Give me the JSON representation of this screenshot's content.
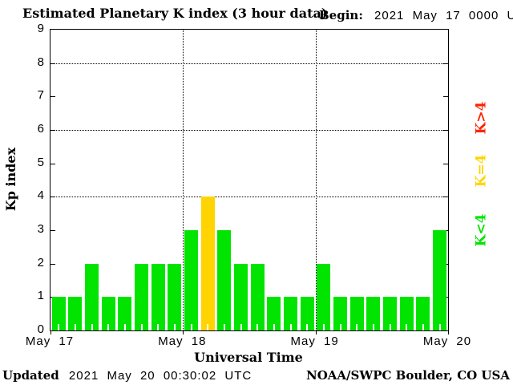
{
  "header": {
    "title": "Estimated Planetary K index (3 hour data)",
    "begin_label": "Begin:",
    "begin_value": "2021 May 17 0000 UTC"
  },
  "chart_data": {
    "type": "bar",
    "title": "Estimated Planetary K index (3 hour data)",
    "xlabel": "Universal Time",
    "ylabel": "Kp index",
    "ylim": [
      0,
      9
    ],
    "y_ticks": [
      0,
      1,
      2,
      3,
      4,
      5,
      6,
      7,
      8,
      9
    ],
    "grid_y_values": [
      4,
      6,
      8
    ],
    "x_tick_labels": [
      "May 17",
      "May 18",
      "May 19",
      "May 20"
    ],
    "begin": "2021 May 17 0000 UTC",
    "interval_hours": 3,
    "values": [
      1,
      1,
      2,
      1,
      1,
      2,
      2,
      2,
      3,
      4,
      3,
      2,
      2,
      1,
      1,
      1,
      2,
      1,
      1,
      1,
      1,
      1,
      1,
      3
    ],
    "colors": {
      "k_lt_4": "#00e400",
      "k_eq_4": "#ffd400",
      "k_gt_4": "#ff2200"
    },
    "legend": [
      {
        "label": "K>4",
        "color": "#ff2200"
      },
      {
        "label": "K=4",
        "color": "#ffd400"
      },
      {
        "label": "K<4",
        "color": "#00e400"
      }
    ],
    "legend_position": "right"
  },
  "footer": {
    "updated_label": "Updated",
    "updated_value": "2021 May 20 00:30:02 UTC",
    "credit": "NOAA/SWPC Boulder, CO USA"
  }
}
